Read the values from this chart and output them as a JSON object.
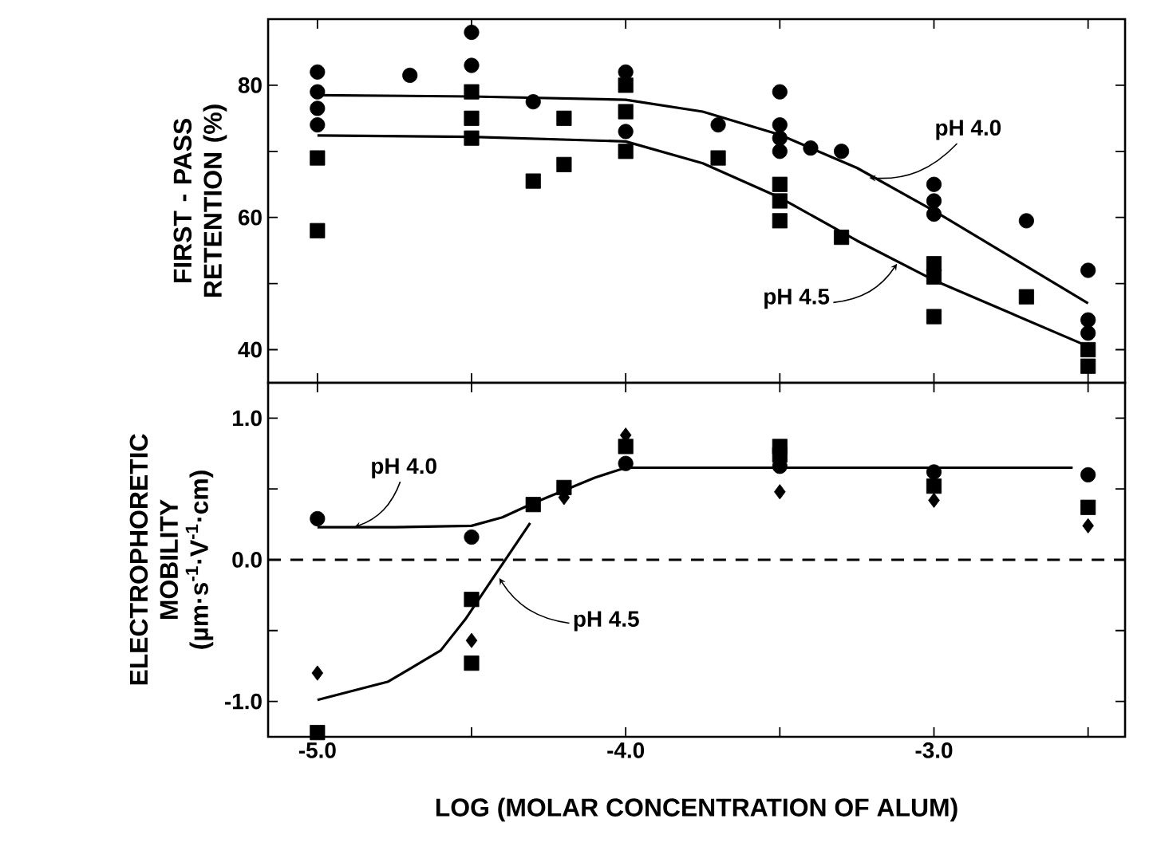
{
  "chart_data": [
    {
      "type": "scatter",
      "ylabel": "FIRST - PASS RETENTION (%)",
      "xlim": [
        -5.16,
        -2.38
      ],
      "ylim": [
        35,
        90
      ],
      "xticks": [
        {
          "value": -5,
          "label": null
        },
        {
          "value": -4.5,
          "label": null
        },
        {
          "value": -4,
          "label": null
        },
        {
          "value": -3.5,
          "label": null
        },
        {
          "value": -3,
          "label": null
        },
        {
          "value": -2.5,
          "label": null
        }
      ],
      "yticks": [
        40,
        {
          "value": 50,
          "label": null
        },
        60,
        {
          "value": 70,
          "label": null
        },
        80
      ],
      "tick_labels": "y",
      "series": [
        {
          "marker": "circle",
          "color": "#000000",
          "x": [
            -5,
            -5,
            -5,
            -5,
            -4.7,
            -4.5,
            -4.5,
            -4.3,
            -4,
            -4,
            -3.7,
            -3.5,
            -3.5,
            -3.5,
            -3.5,
            -3.4,
            -3.3,
            -3,
            -3,
            -3,
            -2.7,
            -2.5,
            -2.5,
            -2.5
          ],
          "values": [
            82,
            79,
            76.5,
            74,
            81.5,
            88,
            83,
            77.5,
            82,
            73,
            74,
            79,
            74,
            72,
            70,
            70.5,
            70,
            65,
            62.5,
            60.5,
            59.5,
            52,
            44.5,
            42.5
          ]
        },
        {
          "marker": "square",
          "color": "#000000",
          "x": [
            -5,
            -5,
            -4.5,
            -4.5,
            -4.5,
            -4.3,
            -4.2,
            -4.2,
            -4,
            -4,
            -4,
            -3.7,
            -3.5,
            -3.5,
            -3.5,
            -3.3,
            -3,
            -3,
            -3,
            -2.7,
            -2.5,
            -2.5
          ],
          "values": [
            69,
            58,
            79,
            75,
            72,
            65.5,
            75,
            68,
            80,
            76,
            70,
            69,
            65,
            62.5,
            59.5,
            57,
            53,
            51,
            45,
            48,
            40,
            37.5
          ]
        },
        {
          "type": "line",
          "line_style": "solid",
          "color": "#000000",
          "x": [
            -5,
            -4.5,
            -4,
            -3.75,
            -3.5,
            -3.25,
            -3,
            -2.75,
            -2.5
          ],
          "values": [
            78.5,
            78.3,
            77.8,
            76,
            72.5,
            67.5,
            61,
            54,
            47
          ]
        },
        {
          "type": "line",
          "line_style": "solid",
          "color": "#000000",
          "x": [
            -5,
            -4.5,
            -4,
            -3.75,
            -3.5,
            -3.25,
            -3,
            -2.75,
            -2.5
          ],
          "values": [
            72.4,
            72.2,
            71.5,
            68.2,
            63,
            56.5,
            50.5,
            45.5,
            40.5
          ]
        }
      ],
      "annotations": [
        {
          "text": "pH 4.0",
          "x": -3.21,
          "y": 66
        },
        {
          "text": "pH 4.5",
          "x": -3.12,
          "y": 53
        }
      ]
    },
    {
      "type": "scatter",
      "ylabel": "ELECTROPHORETIC MOBILITY (µm·s$^{-1}$·V$^{-1}$·cm)",
      "xlabel": "LOG (MOLAR CONCENTRATION OF ALUM)",
      "xlim": [
        -5.16,
        -2.38
      ],
      "ylim": [
        -1.25,
        1.25
      ],
      "xticks": [
        {
          "value": -5,
          "label": "-5.0"
        },
        {
          "value": -4.5,
          "label": null
        },
        {
          "value": -4,
          "label": "-4.0"
        },
        {
          "value": -3.5,
          "label": null
        },
        {
          "value": -3,
          "label": "-3.0"
        },
        {
          "value": -2.5,
          "label": null
        }
      ],
      "yticks": [
        {
          "value": -1,
          "label": "-1.0"
        },
        {
          "value": -0.5,
          "label": null
        },
        {
          "value": 0,
          "label": "0.0"
        },
        {
          "value": 0.5,
          "label": null
        },
        {
          "value": 1,
          "label": "1.0"
        }
      ],
      "series": [
        {
          "marker": "circle",
          "color": "#000000",
          "x": [
            -5,
            -4.5,
            -4,
            -3.5,
            -3,
            -2.5
          ],
          "values": [
            0.29,
            0.16,
            0.68,
            0.66,
            0.62,
            0.6
          ]
        },
        {
          "marker": "square",
          "color": "#000000",
          "x": [
            -5,
            -4.5,
            -4.5,
            -4.3,
            -4.2,
            -4,
            -3.5,
            -3.5,
            -3,
            -2.5
          ],
          "values": [
            -1.22,
            -0.28,
            -0.73,
            0.39,
            0.51,
            0.8,
            0.8,
            0.74,
            0.52,
            0.37
          ]
        },
        {
          "marker": "diamond",
          "color": "#000000",
          "x": [
            -5,
            -4.5,
            -4.2,
            -4,
            -3.5,
            -3,
            -2.5
          ],
          "values": [
            -0.8,
            -0.57,
            0.44,
            0.88,
            0.48,
            0.42,
            0.24
          ]
        },
        {
          "type": "line",
          "line_style": "solid",
          "color": "#000000",
          "x": [
            -5,
            -4.75,
            -4.5,
            -4.4,
            -4.3,
            -4.2,
            -4.1,
            -4,
            -3.5,
            -3,
            -2.55
          ],
          "values": [
            0.23,
            0.23,
            0.24,
            0.3,
            0.4,
            0.49,
            0.58,
            0.65,
            0.65,
            0.65,
            0.65
          ]
        },
        {
          "type": "line",
          "line_style": "solid",
          "color": "#000000",
          "x": [
            -5,
            -4.77,
            -4.6,
            -4.52,
            -4.44,
            -4.31
          ],
          "values": [
            -0.99,
            -0.86,
            -0.64,
            -0.42,
            -0.16,
            0.26
          ]
        }
      ],
      "ref_lines": [
        {
          "axis": "y",
          "value": 0,
          "line_style": "dashed",
          "color": "#000000"
        }
      ],
      "annotations": [
        {
          "text": "pH 4.0",
          "x": -4.88,
          "y": 0.23
        },
        {
          "text": "pH 4.5",
          "x": -4.41,
          "y": -0.13
        }
      ]
    }
  ]
}
